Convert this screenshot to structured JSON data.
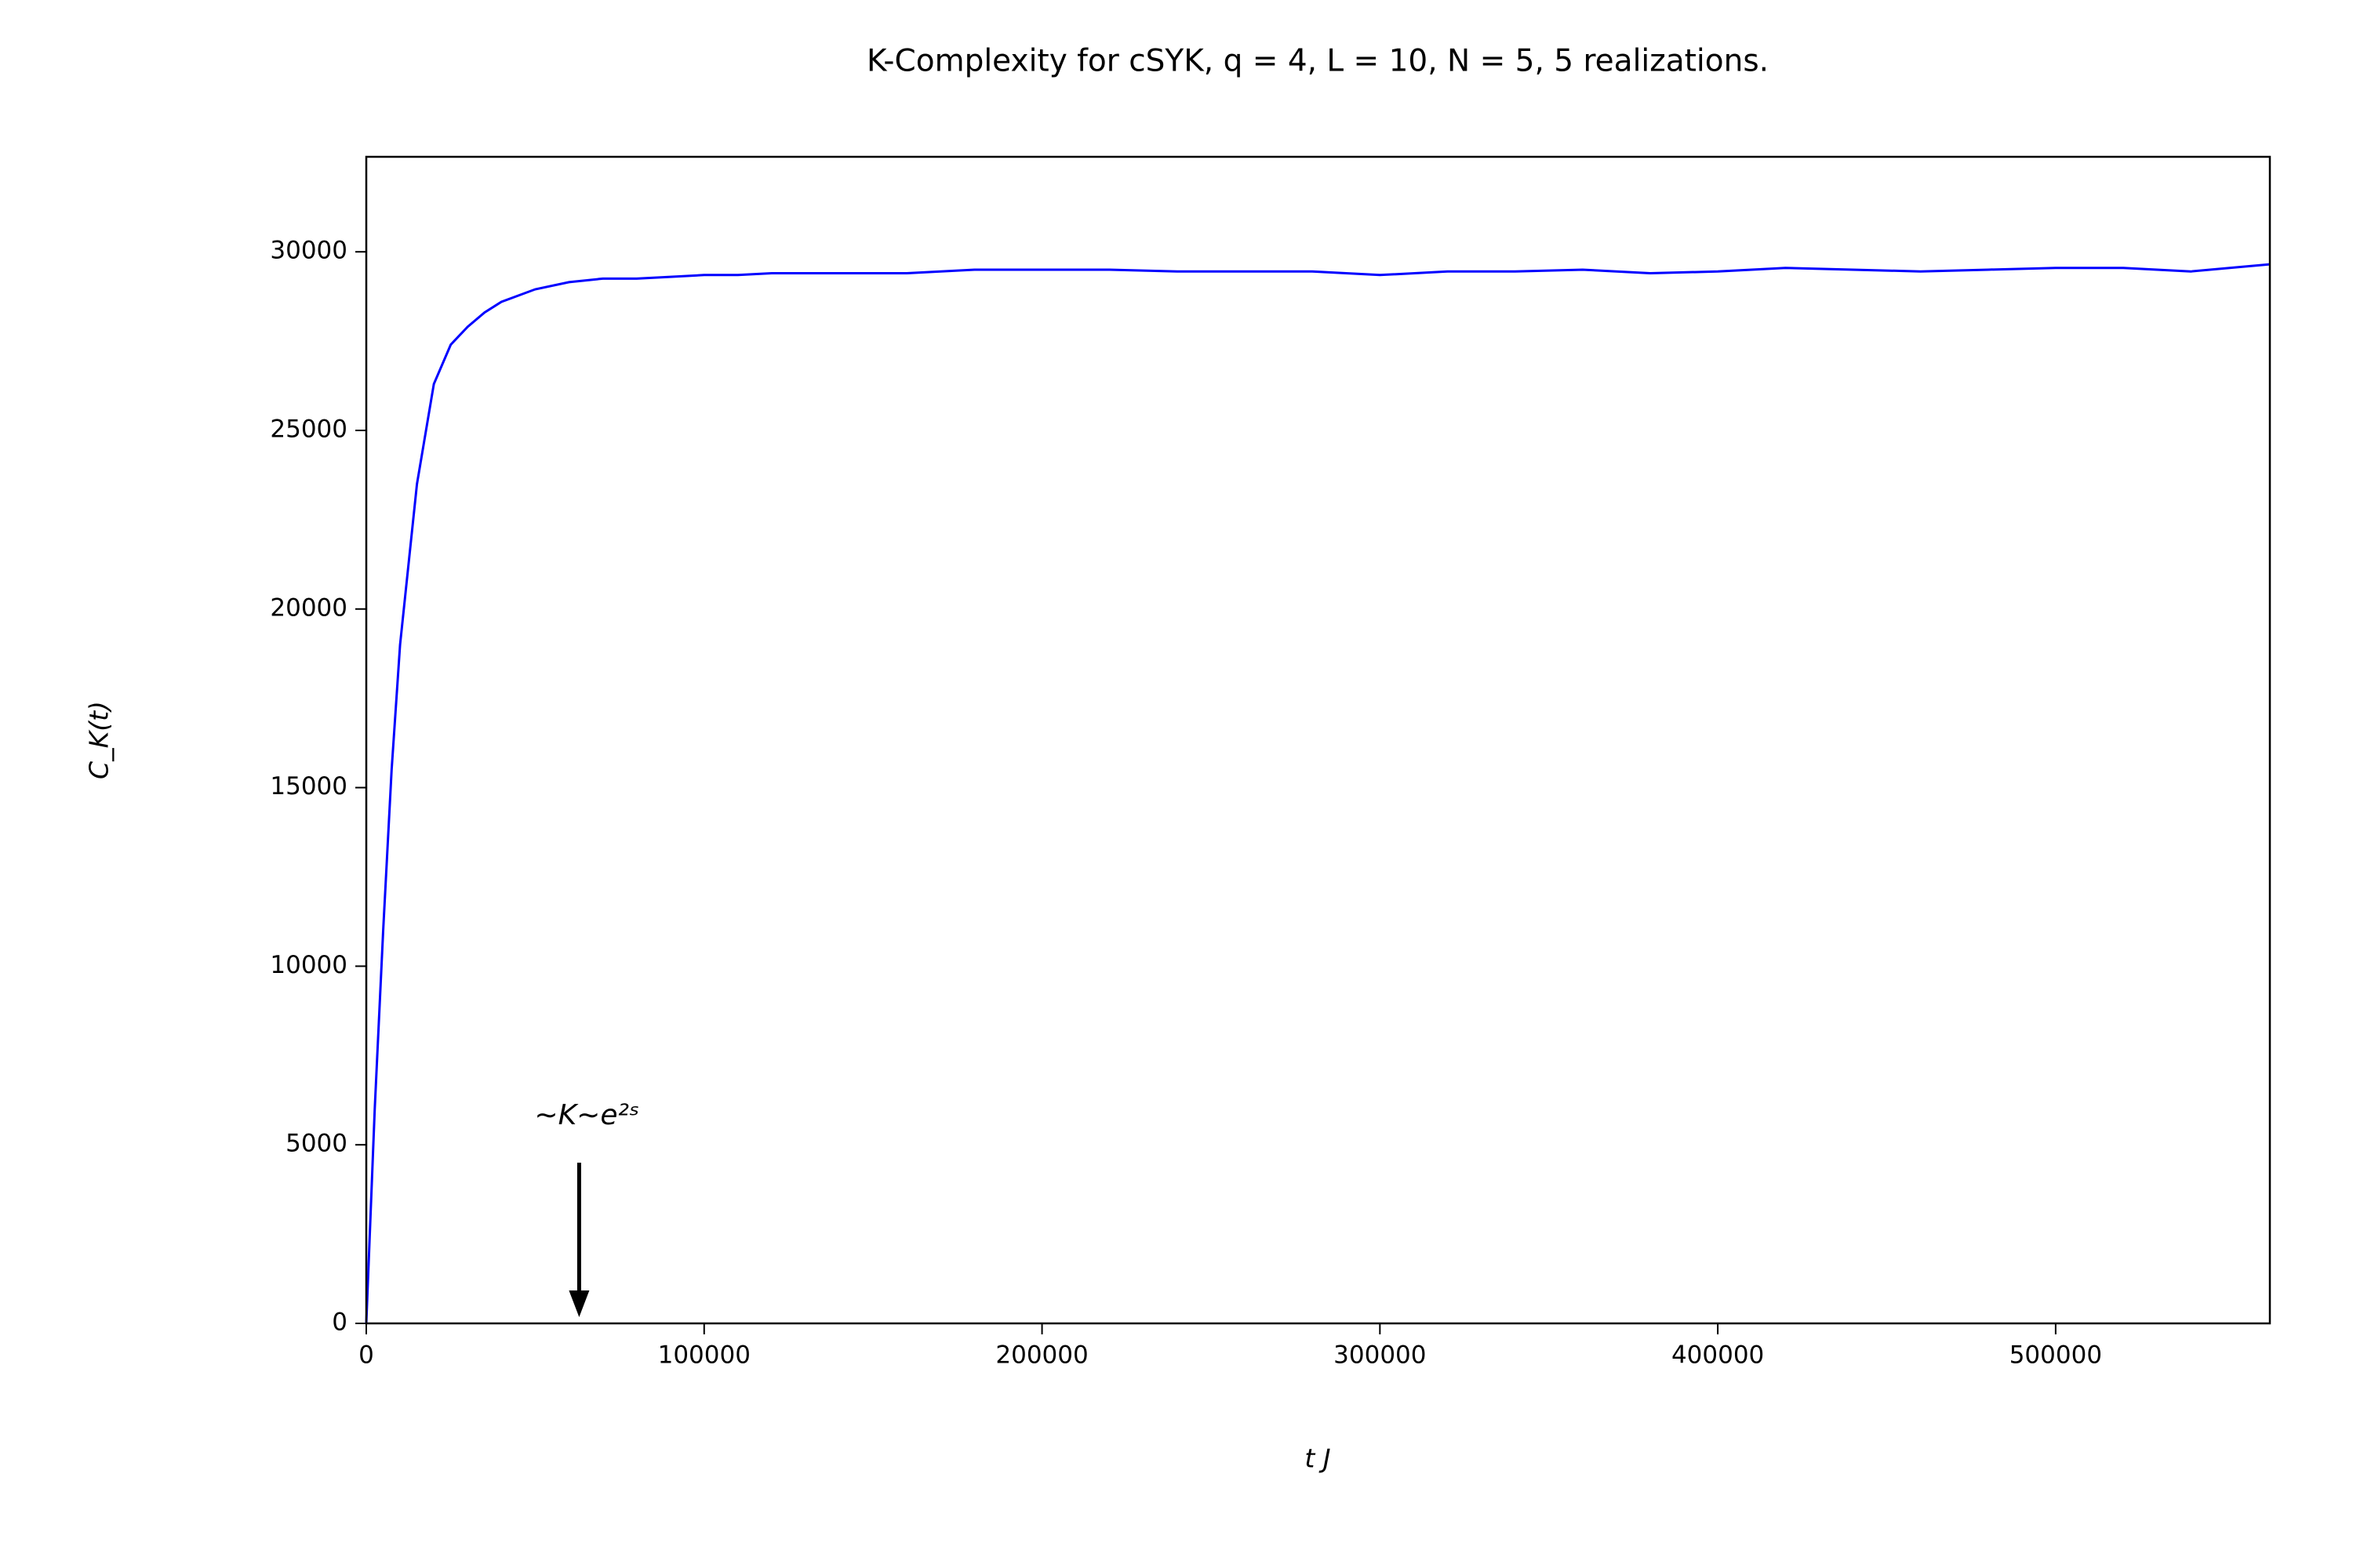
{
  "chart_data": {
    "type": "line",
    "title": "K-Complexity for cSYK, q = 4, L = 10, N = 5, 5 realizations.",
    "xlabel": "t J",
    "ylabel": "C_K(t)",
    "x": [
      0,
      2500,
      5000,
      7500,
      10000,
      15000,
      20000,
      25000,
      30000,
      35000,
      40000,
      50000,
      60000,
      70000,
      80000,
      90000,
      100000,
      110000,
      120000,
      140000,
      160000,
      180000,
      200000,
      220000,
      240000,
      260000,
      280000,
      300000,
      320000,
      340000,
      360000,
      380000,
      400000,
      420000,
      440000,
      460000,
      480000,
      500000,
      520000,
      540000,
      563400
    ],
    "series": [
      {
        "name": "K-complexity",
        "color": "#0000ff",
        "values": [
          0,
          6000,
          11000,
          15500,
          19000,
          23500,
          26300,
          27400,
          27900,
          28300,
          28600,
          28950,
          29150,
          29250,
          29250,
          29300,
          29350,
          29350,
          29400,
          29400,
          29400,
          29500,
          29500,
          29500,
          29450,
          29450,
          29450,
          29350,
          29450,
          29450,
          29500,
          29400,
          29450,
          29550,
          29500,
          29450,
          29500,
          29550,
          29550,
          29450,
          29650
        ]
      }
    ],
    "xlim": [
      0,
      563400
    ],
    "ylim": [
      0,
      32660
    ],
    "xticks": [
      0,
      100000,
      200000,
      300000,
      400000,
      500000
    ],
    "yticks": [
      0,
      5000,
      10000,
      15000,
      20000,
      25000,
      30000
    ],
    "annotation": {
      "text": "∼K∼e²ˢ",
      "x": 63000,
      "y": 5800,
      "arrow_from": 4500,
      "arrow_to": 0
    }
  }
}
